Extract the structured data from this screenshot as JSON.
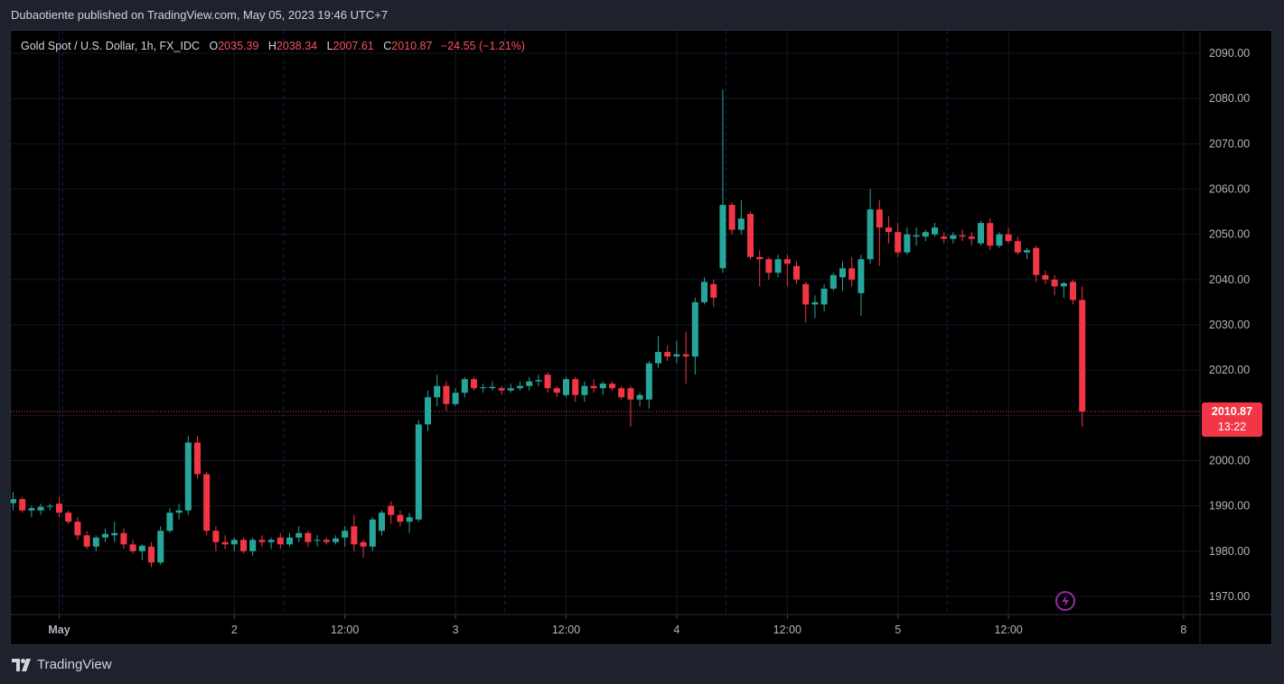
{
  "header": {
    "publisher_line": "Dubaotiente published on TradingView.com, May 05, 2023 19:46 UTC+7"
  },
  "legend": {
    "symbol": "Gold Spot / U.S. Dollar, 1h, FX_IDC",
    "o_label": "O",
    "o_value": "2035.39",
    "h_label": "H",
    "h_value": "2038.34",
    "l_label": "L",
    "l_value": "2007.61",
    "c_label": "C",
    "c_value": "2010.87",
    "change": "−24.55 (−1.21%)"
  },
  "last_price": {
    "value": "2010.87",
    "countdown": "13:22"
  },
  "footer": {
    "brand": "TradingView"
  },
  "icons": {
    "logo": "tradingview-logo-icon",
    "alert": "lightning-bolt-icon"
  },
  "colors": {
    "up": "#26a69a",
    "down": "#f23645",
    "background": "#000000",
    "frame": "#1e222d",
    "price_line": "#f23645"
  },
  "chart_data": {
    "type": "candlestick",
    "title": "Gold Spot / U.S. Dollar, 1h, FX_IDC",
    "y_axis": {
      "ticks": [
        "2090.00",
        "2080.00",
        "2070.00",
        "2060.00",
        "2050.00",
        "2040.00",
        "2030.00",
        "2020.00",
        "2010.00",
        "2000.00",
        "1990.00",
        "1980.00",
        "1970.00"
      ],
      "range": [
        1967.0,
        2093.0
      ],
      "position": "right"
    },
    "x_axis": {
      "ticks": [
        {
          "label": "May",
          "bar": 5,
          "bold": true
        },
        {
          "label": "2",
          "bar": 24
        },
        {
          "label": "12:00",
          "bar": 36
        },
        {
          "label": "3",
          "bar": 48
        },
        {
          "label": "12:00",
          "bar": 60
        },
        {
          "label": "4",
          "bar": 72
        },
        {
          "label": "12:00",
          "bar": 84
        },
        {
          "label": "5",
          "bar": 96
        },
        {
          "label": "12:00",
          "bar": 108
        },
        {
          "label": "8",
          "bar": 127
        }
      ]
    },
    "session_separators_bar": [
      5,
      29,
      53,
      77,
      101
    ],
    "last_price_line": 2010.87,
    "ohlc": [
      [
        1990.6,
        1993.1,
        1989.0,
        1991.5
      ],
      [
        1991.5,
        1992.0,
        1988.5,
        1989.0
      ],
      [
        1989.0,
        1990.0,
        1987.5,
        1989.5
      ],
      [
        1989.0,
        1990.5,
        1988.0,
        1989.8
      ],
      [
        1989.8,
        1990.5,
        1989.0,
        1990.0
      ],
      [
        1990.5,
        1992.0,
        1987.5,
        1988.5
      ],
      [
        1988.5,
        1989.0,
        1986.0,
        1986.5
      ],
      [
        1986.5,
        1987.5,
        1982.5,
        1983.5
      ],
      [
        1983.5,
        1984.5,
        1980.5,
        1981.0
      ],
      [
        1981.0,
        1983.5,
        1980.0,
        1983.0
      ],
      [
        1983.0,
        1985.0,
        1982.0,
        1983.8
      ],
      [
        1983.5,
        1986.5,
        1982.0,
        1984.0
      ],
      [
        1984.0,
        1985.0,
        1980.5,
        1981.5
      ],
      [
        1981.5,
        1982.5,
        1979.5,
        1980.0
      ],
      [
        1980.0,
        1981.5,
        1978.0,
        1981.2
      ],
      [
        1981.0,
        1982.0,
        1976.5,
        1977.5
      ],
      [
        1977.5,
        1985.5,
        1977.0,
        1984.5
      ],
      [
        1984.5,
        1989.5,
        1984.0,
        1988.5
      ],
      [
        1988.5,
        1990.5,
        1987.0,
        1989.0
      ],
      [
        1989.0,
        2005.5,
        1988.0,
        2004.0
      ],
      [
        2004.0,
        2005.5,
        1996.0,
        1997.0
      ],
      [
        1997.0,
        1997.5,
        1983.5,
        1984.5
      ],
      [
        1984.5,
        1985.5,
        1980.0,
        1982.0
      ],
      [
        1982.0,
        1983.5,
        1980.5,
        1981.5
      ],
      [
        1981.5,
        1983.0,
        1980.0,
        1982.5
      ],
      [
        1982.5,
        1983.0,
        1979.5,
        1980.0
      ],
      [
        1980.0,
        1983.0,
        1979.0,
        1982.5
      ],
      [
        1982.5,
        1983.5,
        1981.0,
        1982.0
      ],
      [
        1982.0,
        1983.0,
        1980.5,
        1982.5
      ],
      [
        1983.0,
        1984.0,
        1980.5,
        1981.5
      ],
      [
        1981.5,
        1984.0,
        1981.0,
        1983.0
      ],
      [
        1983.0,
        1985.5,
        1982.0,
        1984.0
      ],
      [
        1984.0,
        1984.5,
        1981.0,
        1982.0
      ],
      [
        1982.5,
        1983.5,
        1981.0,
        1982.5
      ],
      [
        1982.5,
        1983.0,
        1981.5,
        1982.0
      ],
      [
        1982.0,
        1983.5,
        1981.5,
        1982.8
      ],
      [
        1983.0,
        1985.5,
        1981.0,
        1984.5
      ],
      [
        1985.5,
        1988.0,
        1980.0,
        1981.5
      ],
      [
        1982.0,
        1982.5,
        1978.5,
        1981.0
      ],
      [
        1981.0,
        1987.5,
        1980.0,
        1987.0
      ],
      [
        1984.5,
        1989.0,
        1983.5,
        1988.5
      ],
      [
        1990.0,
        1991.0,
        1986.0,
        1988.0
      ],
      [
        1988.0,
        1989.0,
        1985.5,
        1986.5
      ],
      [
        1986.5,
        1988.5,
        1984.0,
        1987.5
      ],
      [
        1987.0,
        2009.0,
        1986.5,
        2008.0
      ],
      [
        2008.0,
        2015.5,
        2006.5,
        2014.0
      ],
      [
        2014.0,
        2019.0,
        2012.0,
        2016.5
      ],
      [
        2016.5,
        2017.5,
        2011.0,
        2012.5
      ],
      [
        2012.5,
        2016.0,
        2012.0,
        2015.0
      ],
      [
        2015.0,
        2018.5,
        2014.0,
        2018.0
      ],
      [
        2018.0,
        2018.5,
        2015.5,
        2016.0
      ],
      [
        2016.0,
        2017.0,
        2015.0,
        2016.2
      ],
      [
        2016.0,
        2017.5,
        2015.5,
        2016.3
      ],
      [
        2016.0,
        2016.5,
        2014.5,
        2015.5
      ],
      [
        2015.5,
        2017.0,
        2015.0,
        2016.0
      ],
      [
        2016.0,
        2017.5,
        2015.5,
        2016.5
      ],
      [
        2016.5,
        2018.5,
        2015.5,
        2017.5
      ],
      [
        2017.5,
        2019.0,
        2016.5,
        2017.8
      ],
      [
        2019.0,
        2019.5,
        2015.0,
        2016.0
      ],
      [
        2016.0,
        2016.5,
        2014.0,
        2015.0
      ],
      [
        2014.5,
        2018.5,
        2014.0,
        2018.0
      ],
      [
        2018.0,
        2018.5,
        2013.0,
        2014.5
      ],
      [
        2014.5,
        2017.5,
        2013.0,
        2016.5
      ],
      [
        2016.5,
        2018.0,
        2015.0,
        2016.0
      ],
      [
        2016.0,
        2017.5,
        2014.5,
        2017.0
      ],
      [
        2017.0,
        2017.5,
        2015.5,
        2016.0
      ],
      [
        2016.0,
        2016.5,
        2013.5,
        2014.0
      ],
      [
        2016.0,
        2016.5,
        2007.5,
        2013.5
      ],
      [
        2013.5,
        2015.0,
        2012.0,
        2014.5
      ],
      [
        2013.5,
        2022.0,
        2011.5,
        2021.5
      ],
      [
        2021.5,
        2027.5,
        2020.5,
        2024.0
      ],
      [
        2024.0,
        2025.5,
        2022.0,
        2023.0
      ],
      [
        2023.0,
        2026.5,
        2021.5,
        2023.5
      ],
      [
        2023.5,
        2028.5,
        2017.0,
        2023.0
      ],
      [
        2023.0,
        2036.0,
        2019.0,
        2035.0
      ],
      [
        2035.0,
        2040.5,
        2034.5,
        2039.5
      ],
      [
        2039.0,
        2040.0,
        2034.0,
        2036.0
      ],
      [
        2042.5,
        2082.0,
        2041.5,
        2056.5
      ],
      [
        2056.5,
        2057.0,
        2050.0,
        2051.0
      ],
      [
        2051.0,
        2057.5,
        2050.0,
        2053.5
      ],
      [
        2054.5,
        2055.0,
        2044.5,
        2045.0
      ],
      [
        2045.0,
        2046.5,
        2038.5,
        2044.5
      ],
      [
        2044.5,
        2045.0,
        2040.0,
        2041.5
      ],
      [
        2041.5,
        2045.5,
        2040.5,
        2044.5
      ],
      [
        2044.5,
        2045.5,
        2038.5,
        2043.5
      ],
      [
        2043.0,
        2044.0,
        2039.0,
        2040.0
      ],
      [
        2039.0,
        2039.5,
        2030.5,
        2034.5
      ],
      [
        2034.5,
        2036.5,
        2031.5,
        2035.0
      ],
      [
        2034.5,
        2039.0,
        2033.0,
        2038.0
      ],
      [
        2038.0,
        2041.5,
        2037.5,
        2041.0
      ],
      [
        2040.5,
        2044.0,
        2037.5,
        2042.5
      ],
      [
        2042.5,
        2045.0,
        2038.5,
        2040.0
      ],
      [
        2037.0,
        2045.5,
        2032.0,
        2044.5
      ],
      [
        2044.5,
        2060.0,
        2043.5,
        2055.5
      ],
      [
        2055.5,
        2057.5,
        2043.0,
        2051.5
      ],
      [
        2051.5,
        2054.0,
        2048.0,
        2050.5
      ],
      [
        2050.5,
        2052.5,
        2045.0,
        2046.0
      ],
      [
        2046.0,
        2051.5,
        2045.5,
        2050.0
      ],
      [
        2049.5,
        2051.5,
        2047.5,
        2049.8
      ],
      [
        2049.5,
        2051.0,
        2048.5,
        2050.5
      ],
      [
        2050.0,
        2052.5,
        2049.5,
        2051.5
      ],
      [
        2049.5,
        2050.5,
        2048.0,
        2049.0
      ],
      [
        2049.0,
        2050.5,
        2048.0,
        2049.8
      ],
      [
        2049.8,
        2051.0,
        2048.5,
        2049.5
      ],
      [
        2049.5,
        2050.5,
        2047.5,
        2049.0
      ],
      [
        2048.0,
        2053.0,
        2047.5,
        2052.5
      ],
      [
        2052.5,
        2053.5,
        2046.5,
        2047.5
      ],
      [
        2047.5,
        2050.5,
        2047.0,
        2050.0
      ],
      [
        2050.0,
        2051.5,
        2048.0,
        2048.5
      ],
      [
        2048.5,
        2049.5,
        2045.5,
        2046.0
      ],
      [
        2046.0,
        2047.0,
        2044.5,
        2046.5
      ],
      [
        2047.0,
        2047.5,
        2039.5,
        2041.0
      ],
      [
        2041.0,
        2042.0,
        2039.0,
        2040.0
      ],
      [
        2040.0,
        2041.0,
        2036.5,
        2038.5
      ],
      [
        2038.5,
        2039.5,
        2036.0,
        2039.2
      ],
      [
        2039.5,
        2040.0,
        2034.5,
        2035.5
      ],
      [
        2035.5,
        2038.5,
        2007.5,
        2010.8
      ]
    ]
  }
}
